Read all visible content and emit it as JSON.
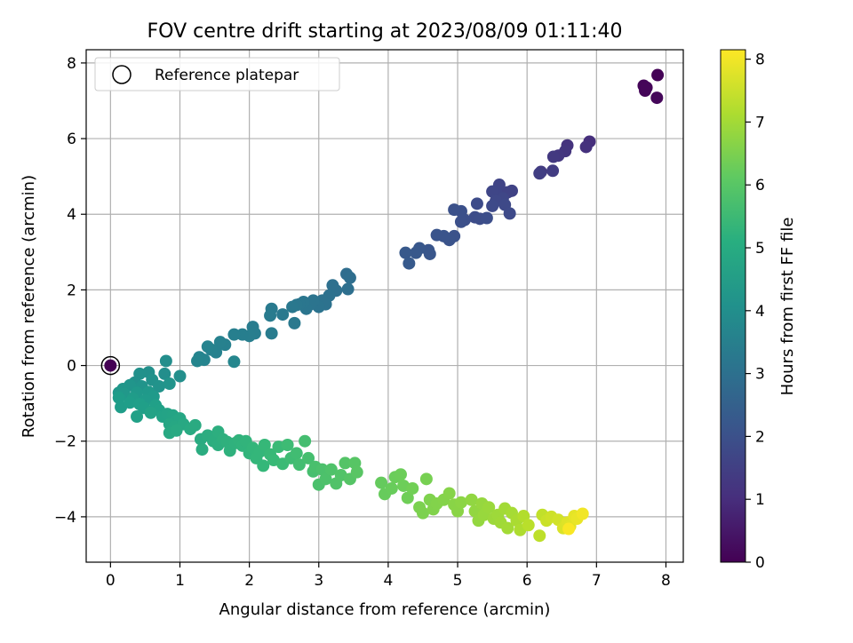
{
  "chart_data": {
    "type": "scatter",
    "title": "FOV centre drift starting at 2023/08/09 01:11:40",
    "xlabel": "Angular distance from reference (arcmin)",
    "ylabel": "Rotation from reference (arcmin)",
    "xlim": [
      -0.35,
      8.25
    ],
    "ylim": [
      -5.2,
      8.35
    ],
    "xticks": [
      0,
      1,
      2,
      3,
      4,
      5,
      6,
      7,
      8
    ],
    "yticks": [
      -4,
      -2,
      0,
      2,
      4,
      6,
      8
    ],
    "grid": true,
    "legend": {
      "placement": "top-left",
      "entries": [
        "Reference platepar"
      ]
    },
    "reference_point": {
      "x": 0,
      "y": 0,
      "label": "Reference platepar"
    },
    "colorbar": {
      "label": "Hours from first FF file",
      "colormap": "viridis",
      "range": [
        0,
        8.15
      ],
      "ticks": [
        0,
        1,
        2,
        3,
        4,
        5,
        6,
        7,
        8
      ]
    },
    "points": [
      {
        "x": 7.88,
        "y": 7.68,
        "h": 0.05
      },
      {
        "x": 7.68,
        "y": 7.4,
        "h": 0.1
      },
      {
        "x": 7.7,
        "y": 7.27,
        "h": 0.1
      },
      {
        "x": 7.72,
        "y": 7.35,
        "h": 0.12
      },
      {
        "x": 7.87,
        "y": 7.08,
        "h": 0.15
      },
      {
        "x": 6.9,
        "y": 5.92,
        "h": 1.1
      },
      {
        "x": 6.85,
        "y": 5.78,
        "h": 1.15
      },
      {
        "x": 6.58,
        "y": 5.82,
        "h": 1.2
      },
      {
        "x": 6.55,
        "y": 5.67,
        "h": 1.25
      },
      {
        "x": 6.45,
        "y": 5.55,
        "h": 1.3
      },
      {
        "x": 6.38,
        "y": 5.52,
        "h": 1.35
      },
      {
        "x": 6.2,
        "y": 5.12,
        "h": 1.4
      },
      {
        "x": 6.37,
        "y": 5.15,
        "h": 1.45
      },
      {
        "x": 6.18,
        "y": 5.08,
        "h": 1.5
      },
      {
        "x": 5.78,
        "y": 4.62,
        "h": 1.6
      },
      {
        "x": 5.72,
        "y": 4.58,
        "h": 1.62
      },
      {
        "x": 5.6,
        "y": 4.78,
        "h": 1.65
      },
      {
        "x": 5.55,
        "y": 4.62,
        "h": 1.68
      },
      {
        "x": 5.5,
        "y": 4.6,
        "h": 1.7
      },
      {
        "x": 5.65,
        "y": 4.42,
        "h": 1.72
      },
      {
        "x": 5.55,
        "y": 4.35,
        "h": 1.75
      },
      {
        "x": 5.68,
        "y": 4.25,
        "h": 1.78
      },
      {
        "x": 5.5,
        "y": 4.22,
        "h": 1.8
      },
      {
        "x": 5.75,
        "y": 4.02,
        "h": 1.82
      },
      {
        "x": 5.28,
        "y": 4.28,
        "h": 1.85
      },
      {
        "x": 5.25,
        "y": 3.92,
        "h": 1.88
      },
      {
        "x": 5.32,
        "y": 3.88,
        "h": 1.9
      },
      {
        "x": 5.42,
        "y": 3.9,
        "h": 1.92
      },
      {
        "x": 5.1,
        "y": 3.85,
        "h": 1.95
      },
      {
        "x": 5.05,
        "y": 3.8,
        "h": 1.98
      },
      {
        "x": 5.05,
        "y": 4.08,
        "h": 2.0
      },
      {
        "x": 4.95,
        "y": 4.12,
        "h": 2.02
      },
      {
        "x": 4.95,
        "y": 3.42,
        "h": 2.05
      },
      {
        "x": 4.88,
        "y": 3.32,
        "h": 2.08
      },
      {
        "x": 4.8,
        "y": 3.42,
        "h": 2.1
      },
      {
        "x": 4.7,
        "y": 3.45,
        "h": 2.12
      },
      {
        "x": 4.58,
        "y": 3.05,
        "h": 2.15
      },
      {
        "x": 4.6,
        "y": 2.95,
        "h": 2.18
      },
      {
        "x": 4.45,
        "y": 3.1,
        "h": 2.2
      },
      {
        "x": 4.4,
        "y": 2.98,
        "h": 2.22
      },
      {
        "x": 4.25,
        "y": 2.98,
        "h": 2.25
      },
      {
        "x": 4.3,
        "y": 2.7,
        "h": 2.28
      },
      {
        "x": 3.4,
        "y": 2.42,
        "h": 2.9
      },
      {
        "x": 3.45,
        "y": 2.32,
        "h": 2.92
      },
      {
        "x": 3.42,
        "y": 2.02,
        "h": 2.95
      },
      {
        "x": 3.2,
        "y": 2.12,
        "h": 2.98
      },
      {
        "x": 3.25,
        "y": 1.98,
        "h": 3.0
      },
      {
        "x": 3.15,
        "y": 1.85,
        "h": 3.02
      },
      {
        "x": 3.05,
        "y": 1.72,
        "h": 3.05
      },
      {
        "x": 3.1,
        "y": 1.62,
        "h": 3.08
      },
      {
        "x": 3.0,
        "y": 1.55,
        "h": 3.1
      },
      {
        "x": 2.92,
        "y": 1.72,
        "h": 3.12
      },
      {
        "x": 2.88,
        "y": 1.62,
        "h": 3.15
      },
      {
        "x": 2.82,
        "y": 1.5,
        "h": 3.18
      },
      {
        "x": 2.78,
        "y": 1.68,
        "h": 3.2
      },
      {
        "x": 2.72,
        "y": 1.62,
        "h": 3.22
      },
      {
        "x": 2.68,
        "y": 1.6,
        "h": 3.25
      },
      {
        "x": 2.62,
        "y": 1.55,
        "h": 3.28
      },
      {
        "x": 2.65,
        "y": 1.12,
        "h": 3.3
      },
      {
        "x": 2.48,
        "y": 1.35,
        "h": 3.32
      },
      {
        "x": 2.32,
        "y": 1.5,
        "h": 3.35
      },
      {
        "x": 2.3,
        "y": 1.32,
        "h": 3.38
      },
      {
        "x": 2.32,
        "y": 0.85,
        "h": 3.4
      },
      {
        "x": 2.05,
        "y": 1.02,
        "h": 3.42
      },
      {
        "x": 2.08,
        "y": 0.85,
        "h": 3.45
      },
      {
        "x": 2.0,
        "y": 0.78,
        "h": 3.48
      },
      {
        "x": 1.9,
        "y": 0.82,
        "h": 3.5
      },
      {
        "x": 1.78,
        "y": 0.82,
        "h": 3.52
      },
      {
        "x": 1.65,
        "y": 0.55,
        "h": 3.55
      },
      {
        "x": 1.58,
        "y": 0.62,
        "h": 3.58
      },
      {
        "x": 1.52,
        "y": 0.35,
        "h": 3.6
      },
      {
        "x": 1.45,
        "y": 0.42,
        "h": 3.62
      },
      {
        "x": 1.4,
        "y": 0.5,
        "h": 3.65
      },
      {
        "x": 1.35,
        "y": 0.15,
        "h": 3.68
      },
      {
        "x": 1.28,
        "y": 0.22,
        "h": 3.7
      },
      {
        "x": 1.25,
        "y": 0.12,
        "h": 3.72
      },
      {
        "x": 1.78,
        "y": 0.1,
        "h": 3.75
      },
      {
        "x": 0.8,
        "y": 0.12,
        "h": 4.0
      },
      {
        "x": 0.78,
        "y": -0.22,
        "h": 4.02
      },
      {
        "x": 1.0,
        "y": -0.28,
        "h": 4.05
      },
      {
        "x": 0.55,
        "y": -0.18,
        "h": 4.08
      },
      {
        "x": 0.42,
        "y": -0.22,
        "h": 4.1
      },
      {
        "x": 0.35,
        "y": -0.45,
        "h": 4.12
      },
      {
        "x": 0.6,
        "y": -0.38,
        "h": 4.15
      },
      {
        "x": 0.7,
        "y": -0.55,
        "h": 4.18
      },
      {
        "x": 0.85,
        "y": -0.48,
        "h": 4.2
      },
      {
        "x": 0.45,
        "y": -0.55,
        "h": 4.22
      },
      {
        "x": 0.28,
        "y": -0.52,
        "h": 4.25
      },
      {
        "x": 0.18,
        "y": -0.62,
        "h": 4.28
      },
      {
        "x": 0.12,
        "y": -0.72,
        "h": 4.3
      },
      {
        "x": 0.2,
        "y": -0.75,
        "h": 4.32
      },
      {
        "x": 0.38,
        "y": -0.72,
        "h": 4.35
      },
      {
        "x": 0.55,
        "y": -0.7,
        "h": 4.38
      },
      {
        "x": 0.62,
        "y": -0.82,
        "h": 4.4
      },
      {
        "x": 0.5,
        "y": -0.92,
        "h": 4.42
      },
      {
        "x": 0.32,
        "y": -0.88,
        "h": 4.45
      },
      {
        "x": 0.12,
        "y": -0.85,
        "h": 4.48
      },
      {
        "x": 0.15,
        "y": -1.1,
        "h": 4.5
      },
      {
        "x": 0.28,
        "y": -0.98,
        "h": 4.52
      },
      {
        "x": 0.42,
        "y": -1.02,
        "h": 4.55
      },
      {
        "x": 0.48,
        "y": -1.12,
        "h": 4.58
      },
      {
        "x": 0.65,
        "y": -1.05,
        "h": 4.6
      },
      {
        "x": 0.7,
        "y": -1.18,
        "h": 4.62
      },
      {
        "x": 0.38,
        "y": -1.35,
        "h": 4.65
      },
      {
        "x": 0.58,
        "y": -1.25,
        "h": 4.68
      },
      {
        "x": 0.75,
        "y": -1.35,
        "h": 4.7
      },
      {
        "x": 0.82,
        "y": -1.28,
        "h": 4.72
      },
      {
        "x": 0.9,
        "y": -1.32,
        "h": 4.75
      },
      {
        "x": 0.95,
        "y": -1.45,
        "h": 4.78
      },
      {
        "x": 1.0,
        "y": -1.4,
        "h": 4.8
      },
      {
        "x": 0.85,
        "y": -1.55,
        "h": 4.82
      },
      {
        "x": 0.92,
        "y": -1.62,
        "h": 4.85
      },
      {
        "x": 1.05,
        "y": -1.55,
        "h": 4.88
      },
      {
        "x": 0.85,
        "y": -1.78,
        "h": 4.9
      },
      {
        "x": 0.95,
        "y": -1.72,
        "h": 4.92
      },
      {
        "x": 1.15,
        "y": -1.68,
        "h": 4.95
      },
      {
        "x": 1.22,
        "y": -1.58,
        "h": 4.98
      },
      {
        "x": 1.3,
        "y": -1.95,
        "h": 5.0
      },
      {
        "x": 1.32,
        "y": -2.22,
        "h": 5.02
      },
      {
        "x": 1.4,
        "y": -1.85,
        "h": 5.05
      },
      {
        "x": 1.48,
        "y": -2.0,
        "h": 5.08
      },
      {
        "x": 1.55,
        "y": -1.75,
        "h": 5.1
      },
      {
        "x": 1.55,
        "y": -2.1,
        "h": 5.12
      },
      {
        "x": 1.62,
        "y": -1.95,
        "h": 5.15
      },
      {
        "x": 1.68,
        "y": -2.02,
        "h": 5.18
      },
      {
        "x": 1.72,
        "y": -2.25,
        "h": 5.2
      },
      {
        "x": 1.8,
        "y": -2.05,
        "h": 5.22
      },
      {
        "x": 1.85,
        "y": -1.98,
        "h": 5.25
      },
      {
        "x": 1.9,
        "y": -2.12,
        "h": 5.28
      },
      {
        "x": 1.95,
        "y": -2.0,
        "h": 5.3
      },
      {
        "x": 2.0,
        "y": -2.32,
        "h": 5.32
      },
      {
        "x": 2.05,
        "y": -2.18,
        "h": 5.35
      },
      {
        "x": 2.1,
        "y": -2.45,
        "h": 5.38
      },
      {
        "x": 2.15,
        "y": -2.28,
        "h": 5.4
      },
      {
        "x": 2.2,
        "y": -2.65,
        "h": 5.42
      },
      {
        "x": 2.22,
        "y": -2.1,
        "h": 5.45
      },
      {
        "x": 2.3,
        "y": -2.35,
        "h": 5.48
      },
      {
        "x": 2.35,
        "y": -2.5,
        "h": 5.5
      },
      {
        "x": 2.42,
        "y": -2.15,
        "h": 5.52
      },
      {
        "x": 2.48,
        "y": -2.6,
        "h": 5.55
      },
      {
        "x": 2.55,
        "y": -2.1,
        "h": 5.58
      },
      {
        "x": 2.6,
        "y": -2.45,
        "h": 5.6
      },
      {
        "x": 2.68,
        "y": -2.32,
        "h": 5.62
      },
      {
        "x": 2.72,
        "y": -2.62,
        "h": 5.65
      },
      {
        "x": 2.8,
        "y": -2.0,
        "h": 5.68
      },
      {
        "x": 2.85,
        "y": -2.45,
        "h": 5.7
      },
      {
        "x": 2.92,
        "y": -2.8,
        "h": 5.72
      },
      {
        "x": 2.95,
        "y": -2.68,
        "h": 5.75
      },
      {
        "x": 3.0,
        "y": -3.15,
        "h": 5.78
      },
      {
        "x": 3.05,
        "y": -2.75,
        "h": 5.8
      },
      {
        "x": 3.1,
        "y": -3.0,
        "h": 5.82
      },
      {
        "x": 3.18,
        "y": -2.75,
        "h": 5.85
      },
      {
        "x": 3.25,
        "y": -3.12,
        "h": 5.88
      },
      {
        "x": 3.32,
        "y": -2.9,
        "h": 5.9
      },
      {
        "x": 3.38,
        "y": -2.58,
        "h": 5.92
      },
      {
        "x": 3.45,
        "y": -3.0,
        "h": 5.95
      },
      {
        "x": 3.52,
        "y": -2.58,
        "h": 5.98
      },
      {
        "x": 3.55,
        "y": -2.82,
        "h": 6.0
      },
      {
        "x": 3.9,
        "y": -3.1,
        "h": 6.2
      },
      {
        "x": 3.95,
        "y": -3.4,
        "h": 6.22
      },
      {
        "x": 4.05,
        "y": -3.25,
        "h": 6.25
      },
      {
        "x": 4.1,
        "y": -2.95,
        "h": 6.28
      },
      {
        "x": 4.18,
        "y": -2.88,
        "h": 6.3
      },
      {
        "x": 4.22,
        "y": -3.18,
        "h": 6.32
      },
      {
        "x": 4.28,
        "y": -3.5,
        "h": 6.35
      },
      {
        "x": 4.35,
        "y": -3.25,
        "h": 6.38
      },
      {
        "x": 4.55,
        "y": -3.0,
        "h": 6.45
      },
      {
        "x": 4.45,
        "y": -3.75,
        "h": 6.5
      },
      {
        "x": 4.5,
        "y": -3.9,
        "h": 6.52
      },
      {
        "x": 4.6,
        "y": -3.55,
        "h": 6.55
      },
      {
        "x": 4.65,
        "y": -3.8,
        "h": 6.58
      },
      {
        "x": 4.7,
        "y": -3.65,
        "h": 6.6
      },
      {
        "x": 4.8,
        "y": -3.55,
        "h": 6.62
      },
      {
        "x": 4.88,
        "y": -3.38,
        "h": 6.65
      },
      {
        "x": 4.95,
        "y": -3.68,
        "h": 6.68
      },
      {
        "x": 5.0,
        "y": -3.85,
        "h": 6.7
      },
      {
        "x": 5.05,
        "y": -3.62,
        "h": 6.72
      },
      {
        "x": 5.2,
        "y": -3.55,
        "h": 6.78
      },
      {
        "x": 5.25,
        "y": -3.85,
        "h": 6.8
      },
      {
        "x": 5.3,
        "y": -4.1,
        "h": 6.82
      },
      {
        "x": 5.35,
        "y": -3.65,
        "h": 6.85
      },
      {
        "x": 5.38,
        "y": -3.95,
        "h": 6.88
      },
      {
        "x": 5.45,
        "y": -3.75,
        "h": 6.9
      },
      {
        "x": 5.52,
        "y": -4.05,
        "h": 6.92
      },
      {
        "x": 5.58,
        "y": -3.95,
        "h": 6.95
      },
      {
        "x": 5.62,
        "y": -4.15,
        "h": 6.98
      },
      {
        "x": 5.68,
        "y": -3.78,
        "h": 7.0
      },
      {
        "x": 5.72,
        "y": -4.3,
        "h": 7.02
      },
      {
        "x": 5.78,
        "y": -3.9,
        "h": 7.05
      },
      {
        "x": 5.85,
        "y": -4.1,
        "h": 7.1
      },
      {
        "x": 5.9,
        "y": -4.35,
        "h": 7.15
      },
      {
        "x": 5.95,
        "y": -3.98,
        "h": 7.2
      },
      {
        "x": 6.02,
        "y": -4.22,
        "h": 7.3
      },
      {
        "x": 6.18,
        "y": -4.5,
        "h": 7.35
      },
      {
        "x": 6.22,
        "y": -3.95,
        "h": 7.4
      },
      {
        "x": 6.28,
        "y": -4.1,
        "h": 7.5
      },
      {
        "x": 6.35,
        "y": -4.0,
        "h": 7.55
      },
      {
        "x": 6.45,
        "y": -4.08,
        "h": 7.6
      },
      {
        "x": 6.52,
        "y": -4.3,
        "h": 7.7
      },
      {
        "x": 6.58,
        "y": -4.15,
        "h": 7.75
      },
      {
        "x": 6.62,
        "y": -4.25,
        "h": 7.8
      },
      {
        "x": 6.68,
        "y": -3.98,
        "h": 7.85
      },
      {
        "x": 6.72,
        "y": -4.05,
        "h": 7.9
      },
      {
        "x": 6.8,
        "y": -3.92,
        "h": 8.0
      },
      {
        "x": 6.6,
        "y": -4.32,
        "h": 8.1
      }
    ]
  }
}
